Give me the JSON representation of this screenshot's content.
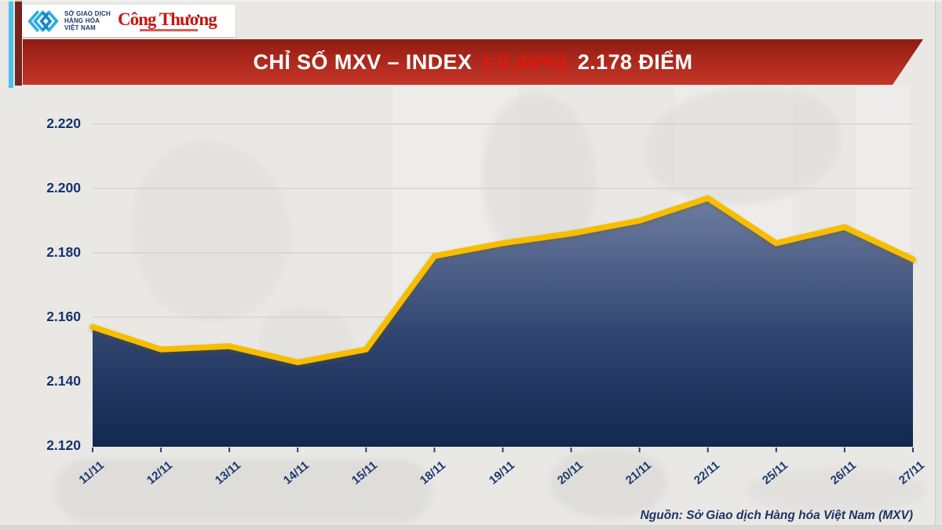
{
  "header": {
    "mxv_logo_lines": [
      "SỞ GIAO DỊCH",
      "HÀNG HÓA",
      "VIỆT NAM"
    ],
    "brand_name": "Công Thương"
  },
  "banner": {
    "title_part1": "CHỈ SỐ MXV – INDEX",
    "change": "(-0,46%)",
    "title_part2": "2.178 ĐIỂM"
  },
  "chart_data": {
    "type": "area",
    "title": "CHỈ SỐ MXV – INDEX (-0,46%) 2.178 ĐIỂM",
    "categories": [
      "11/11",
      "12/11",
      "13/11",
      "14/11",
      "15/11",
      "18/11",
      "19/11",
      "20/11",
      "21/11",
      "22/11",
      "25/11",
      "26/11",
      "27/11"
    ],
    "values": [
      2157,
      2150,
      2151,
      2146,
      2150,
      2179,
      2183,
      2186,
      2190,
      2197,
      2183,
      2188,
      2178
    ],
    "unit": "điểm",
    "xlabel": "",
    "ylabel": "",
    "ylim": [
      2120,
      2230
    ],
    "grid": true,
    "legend": "none",
    "y_ticks": [
      {
        "label": "2.220",
        "value": 2220
      },
      {
        "label": "2.200",
        "value": 2200
      },
      {
        "label": "2.180",
        "value": 2180
      },
      {
        "label": "2.160",
        "value": 2160
      },
      {
        "label": "2.140",
        "value": 2140
      },
      {
        "label": "2.120",
        "value": 2120
      }
    ],
    "line_color": "#f7bd05",
    "fill_top": "#6f7ea2",
    "fill_bottom": "#122850"
  },
  "footer": {
    "source": "Nguồn: Sở Giao dịch Hàng hóa Việt Nam (MXV)"
  },
  "colors": {
    "banner_red": "#b22a1e",
    "change_red": "#e0170b",
    "navy_text": "#1c3565",
    "cyan_stripe": "#47c3ec",
    "maroon_stripe": "#78231b",
    "brand_red": "#c6150f",
    "background": "#e9e8e5"
  }
}
